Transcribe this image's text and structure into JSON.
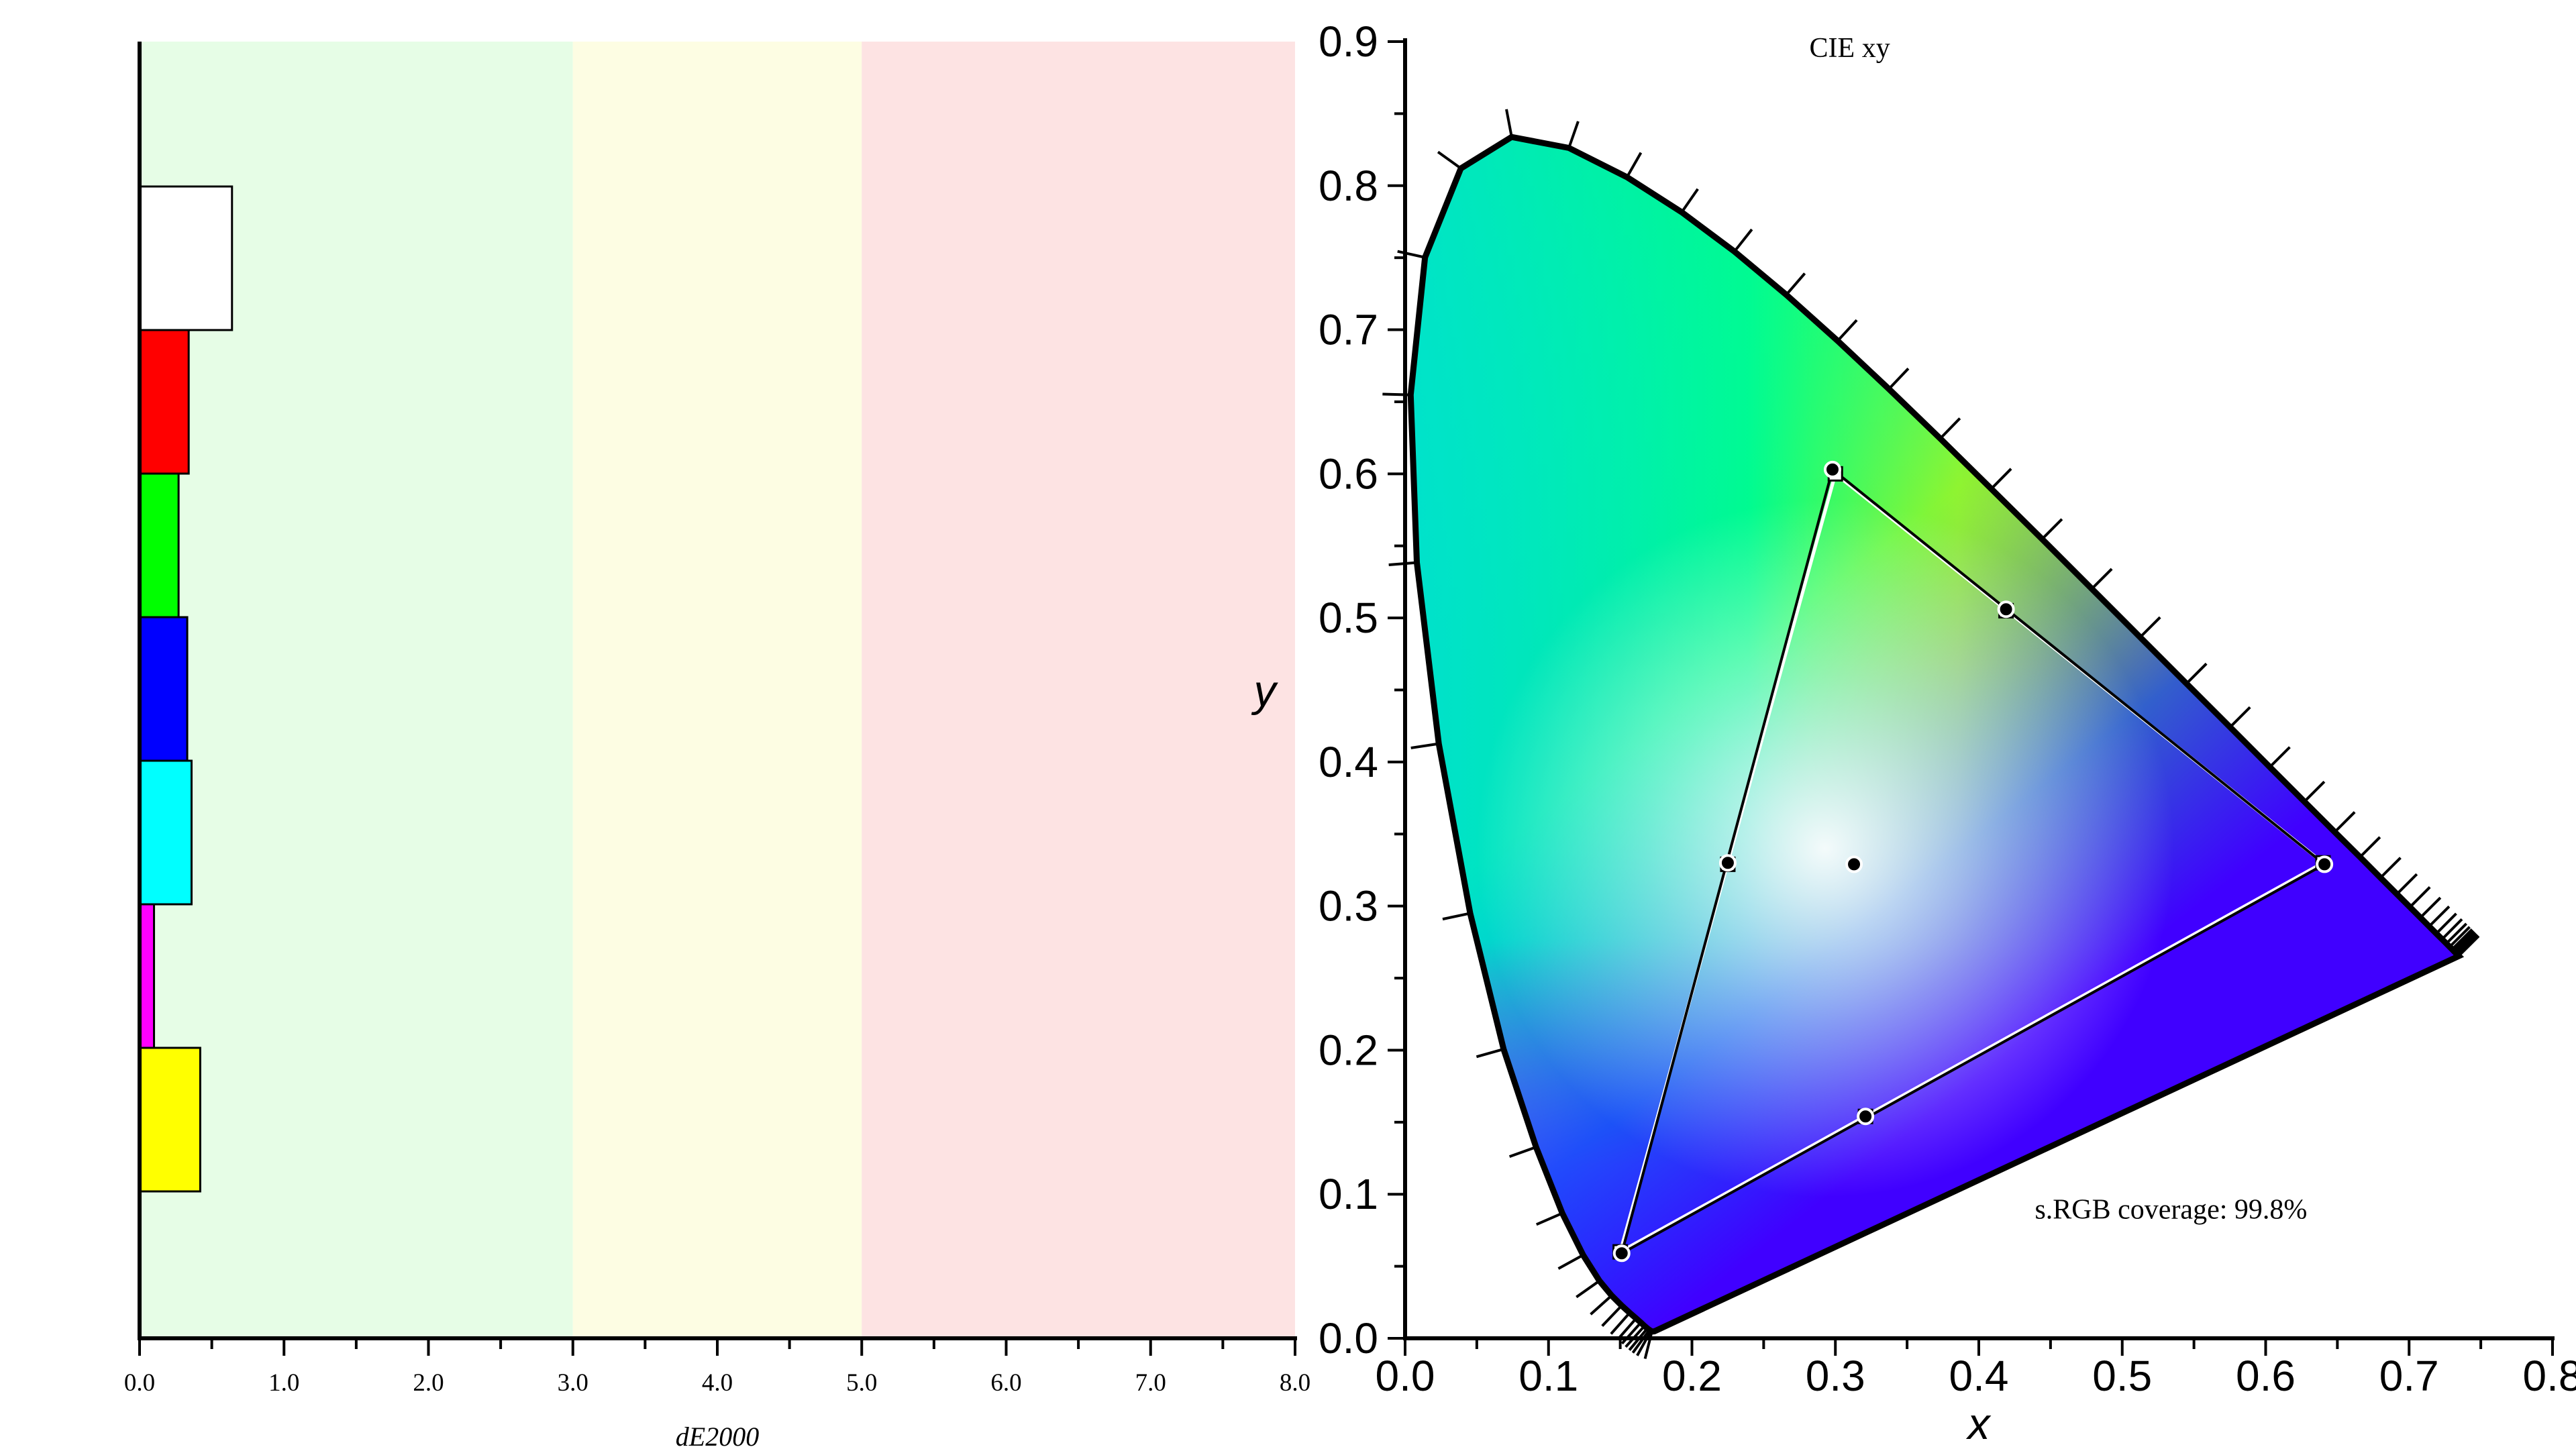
{
  "chart_data": [
    {
      "type": "bar",
      "orientation": "horizontal",
      "xlabel": "dE2000",
      "xlim": [
        0,
        8
      ],
      "x_ticks": [
        "0.0",
        "1.0",
        "2.0",
        "3.0",
        "4.0",
        "5.0",
        "6.0",
        "7.0",
        "8.0"
      ],
      "grid": false,
      "bands": [
        {
          "from": 0,
          "to": 3,
          "color": "#e6fde6"
        },
        {
          "from": 3,
          "to": 5,
          "color": "#fdfde3"
        },
        {
          "from": 5,
          "to": 8,
          "color": "#fde3e3"
        }
      ],
      "bars": [
        {
          "color": "#ffffff",
          "value": 0.64
        },
        {
          "color": "#ff0000",
          "value": 0.34
        },
        {
          "color": "#00ff00",
          "value": 0.27
        },
        {
          "color": "#0000ff",
          "value": 0.33
        },
        {
          "color": "#00ffff",
          "value": 0.36
        },
        {
          "color": "#ff00ff",
          "value": 0.1
        },
        {
          "color": "#ffff00",
          "value": 0.42
        }
      ]
    },
    {
      "type": "scatter",
      "title": "CIE xy",
      "xlabel": "x",
      "ylabel": "y",
      "xlim": [
        0,
        0.8
      ],
      "ylim": [
        0,
        0.9
      ],
      "x_ticks": [
        "0.0",
        "0.1",
        "0.2",
        "0.3",
        "0.4",
        "0.5",
        "0.6",
        "0.7",
        "0.8"
      ],
      "y_ticks": [
        "0.0",
        "0.1",
        "0.2",
        "0.3",
        "0.4",
        "0.5",
        "0.6",
        "0.7",
        "0.8",
        "0.9"
      ],
      "grid": false,
      "annotation": "s.RGB coverage: 99.8%",
      "reference_gamut": [
        [
          0.64,
          0.33
        ],
        [
          0.3,
          0.6
        ],
        [
          0.15,
          0.06
        ]
      ],
      "measured_gamut": [
        [
          0.641,
          0.329
        ],
        [
          0.298,
          0.603
        ],
        [
          0.151,
          0.059
        ]
      ],
      "target_points": [
        [
          0.225,
          0.329
        ],
        [
          0.321,
          0.154
        ],
        [
          0.419,
          0.505
        ]
      ],
      "measured_points": [
        {
          "x": 0.298,
          "y": 0.603
        },
        {
          "x": 0.419,
          "y": 0.506
        },
        {
          "x": 0.641,
          "y": 0.329
        },
        {
          "x": 0.313,
          "y": 0.329
        },
        {
          "x": 0.225,
          "y": 0.33
        },
        {
          "x": 0.321,
          "y": 0.154
        },
        {
          "x": 0.151,
          "y": 0.059
        }
      ]
    }
  ]
}
